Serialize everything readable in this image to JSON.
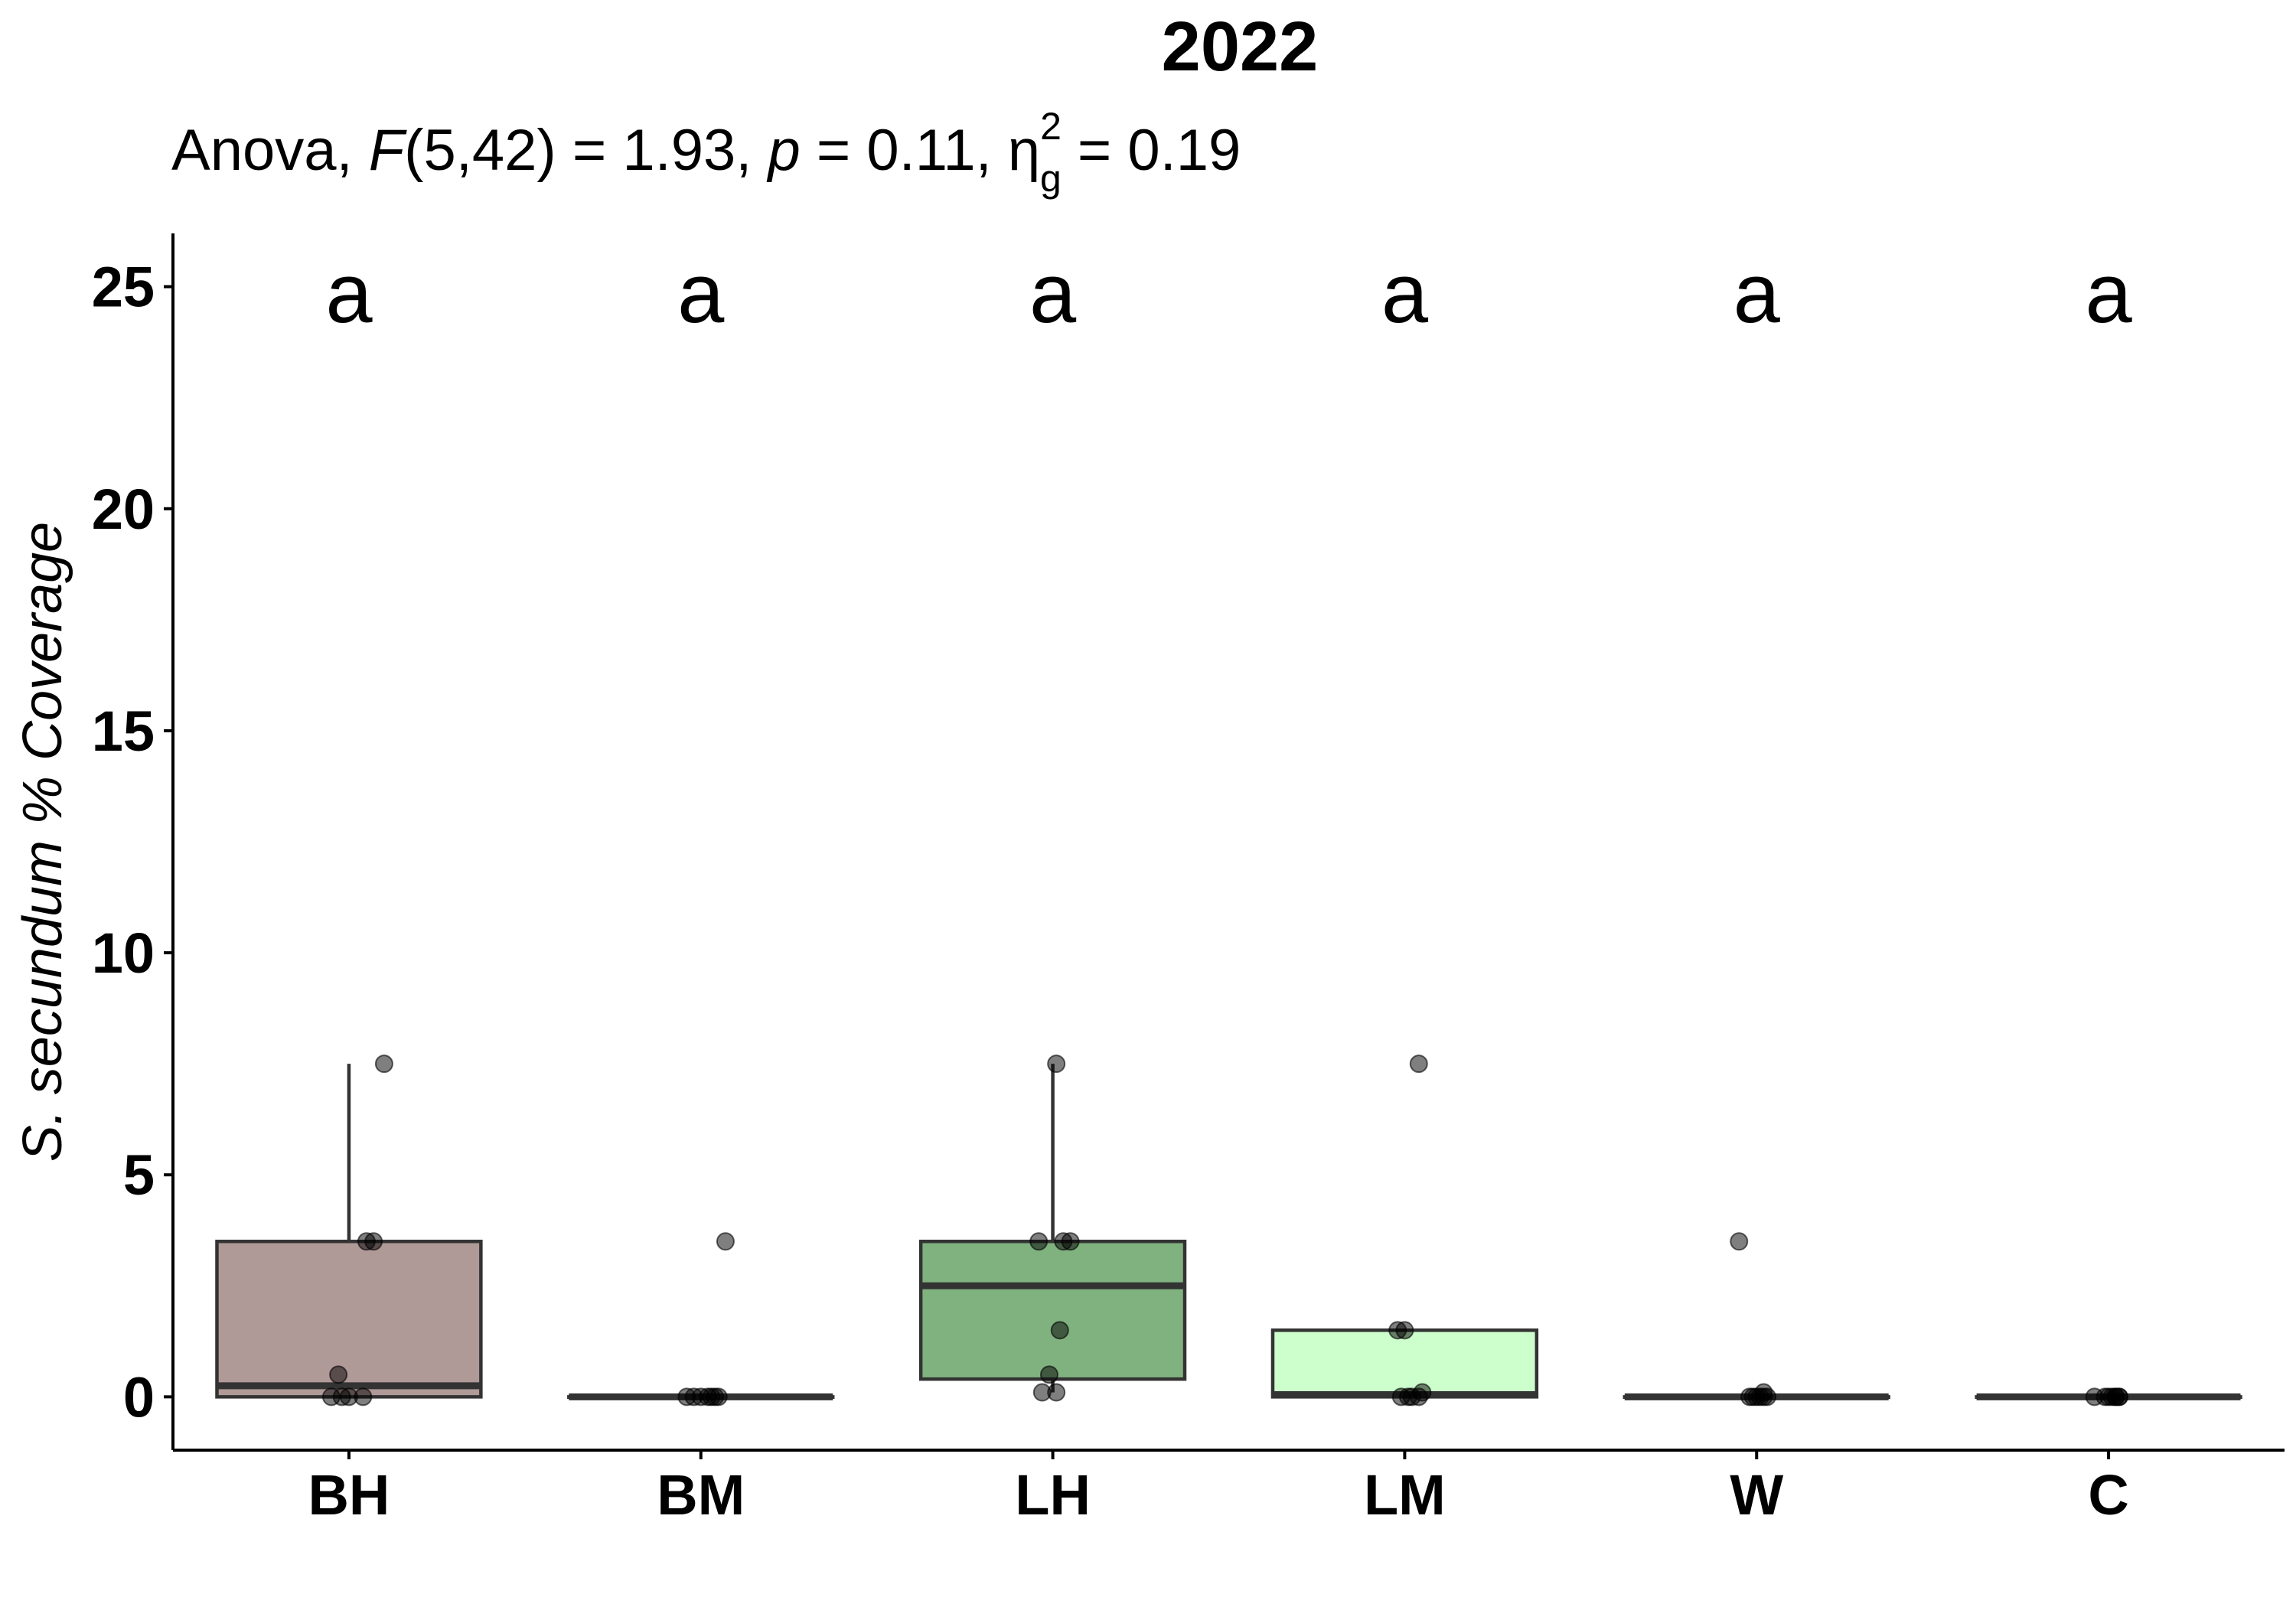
{
  "chart_data": {
    "type": "box",
    "title": "2022",
    "subtitle": {
      "prefix": "Anova, ",
      "f_symbol": "F",
      "f_args": "(5,42) = 1.93, ",
      "p_symbol": "p",
      "p_value": " = 0.11, ",
      "eta_symbol": "η",
      "eta_sub": "g",
      "eta_sup": "2",
      "eta_value": " = 0.19"
    },
    "ylabel": "S. secundum % Coverage",
    "xlabel": "",
    "ylim": [
      -1.2,
      26.2
    ],
    "yticks": [
      0,
      5,
      10,
      15,
      20,
      25
    ],
    "grid": false,
    "legend": "none",
    "categories": [
      "BH",
      "BM",
      "LH",
      "LM",
      "W",
      "C"
    ],
    "groups": [
      {
        "name": "BH",
        "color": "#b09a98",
        "q1": 0,
        "median": 0.25,
        "q3": 3.5,
        "whisker_low": 0,
        "whisker_high": 7.5,
        "letter": "a",
        "points": [
          [
            0.1,
            7.5
          ],
          [
            0.07,
            3.5
          ],
          [
            0.05,
            3.5
          ],
          [
            -0.03,
            0.5
          ],
          [
            -0.05,
            0
          ],
          [
            0,
            0
          ],
          [
            0.04,
            0
          ],
          [
            -0.02,
            0
          ]
        ]
      },
      {
        "name": "BM",
        "color": "#e6d6d4",
        "q1": 0,
        "median": 0,
        "q3": 0,
        "whisker_low": 0,
        "whisker_high": 0,
        "letter": "a",
        "points": [
          [
            0.07,
            3.5
          ],
          [
            -0.04,
            0
          ],
          [
            0,
            0
          ],
          [
            0.03,
            0
          ],
          [
            0.05,
            0
          ],
          [
            -0.02,
            0
          ],
          [
            0.02,
            0
          ],
          [
            0.04,
            0
          ]
        ]
      },
      {
        "name": "LH",
        "color": "#80b280",
        "q1": 0.4,
        "median": 2.5,
        "q3": 3.5,
        "whisker_low": 0.1,
        "whisker_high": 7.5,
        "letter": "a",
        "points": [
          [
            0.01,
            7.5
          ],
          [
            -0.04,
            3.5
          ],
          [
            0.03,
            3.5
          ],
          [
            0.05,
            3.5
          ],
          [
            0.02,
            1.5
          ],
          [
            -0.01,
            0.5
          ],
          [
            -0.03,
            0.1
          ],
          [
            0.01,
            0.1
          ]
        ]
      },
      {
        "name": "LM",
        "color": "#ccffcc",
        "q1": 0,
        "median": 0.05,
        "q3": 1.5,
        "whisker_low": 0,
        "whisker_high": 1.5,
        "letter": "a",
        "points": [
          [
            0.04,
            7.5
          ],
          [
            -0.02,
            1.5
          ],
          [
            0,
            1.5
          ],
          [
            0.05,
            0.1
          ],
          [
            -0.01,
            0
          ],
          [
            0.01,
            0
          ],
          [
            0.04,
            0
          ],
          [
            0.02,
            0
          ]
        ]
      },
      {
        "name": "W",
        "color": "#dddddd",
        "q1": 0,
        "median": 0,
        "q3": 0,
        "whisker_low": 0,
        "whisker_high": 0,
        "letter": "a",
        "points": [
          [
            -0.05,
            3.5
          ],
          [
            0.02,
            0.1
          ],
          [
            -0.02,
            0
          ],
          [
            0,
            0
          ],
          [
            0.01,
            0
          ],
          [
            0.03,
            0
          ],
          [
            -0.01,
            0
          ],
          [
            0.02,
            0
          ]
        ]
      },
      {
        "name": "C",
        "color": "#dddddd",
        "q1": 0,
        "median": 0,
        "q3": 0,
        "whisker_low": 0,
        "whisker_high": 0,
        "letter": "a",
        "points": [
          [
            -0.04,
            0
          ],
          [
            0,
            0
          ],
          [
            0.01,
            0
          ],
          [
            0.02,
            0
          ],
          [
            0.03,
            0
          ],
          [
            -0.01,
            0
          ],
          [
            0.02,
            0
          ],
          [
            0.03,
            0
          ]
        ]
      }
    ]
  }
}
